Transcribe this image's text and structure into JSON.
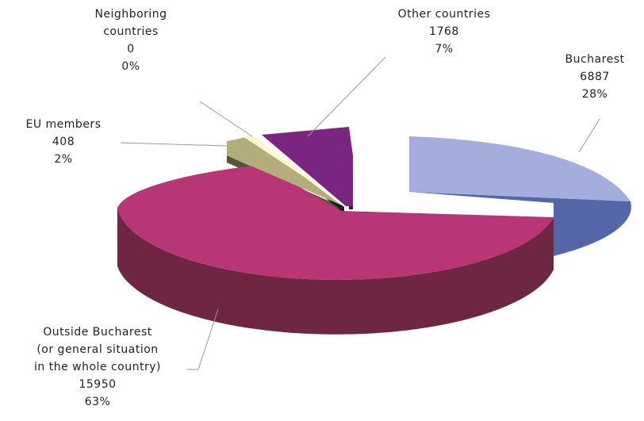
{
  "chart_data": {
    "type": "pie",
    "style": "3d-exploded",
    "title": "",
    "legend": "none",
    "slices": [
      {
        "name": "Bucharest",
        "value": 6887,
        "percent": "28%",
        "value_label": "6887",
        "colors": {
          "top": "#a3aedc",
          "side": "#5566a8"
        }
      },
      {
        "name": "Outside Bucharest (or general situation in the whole country)",
        "value": 15950,
        "percent": "63%",
        "value_label": "15950",
        "colors": {
          "top": "#b83576",
          "side": "#6e2643"
        }
      },
      {
        "name": "EU members",
        "value": 408,
        "percent": "2%",
        "value_label": "408",
        "colors": {
          "top": "#b2ad7b",
          "side": "#57543a"
        }
      },
      {
        "name": "Neighboring countries",
        "value": 0,
        "percent": "0%",
        "value_label": "0",
        "colors": {
          "top": "#fdf6cf",
          "side": "#8a8466"
        }
      },
      {
        "name": "Other countries",
        "value": 1768,
        "percent": "7%",
        "value_label": "1768",
        "colors": {
          "top": "#7a2580",
          "side": "#3f1444"
        }
      }
    ],
    "labels": {
      "bucharest": [
        "Bucharest",
        "6887",
        "28%"
      ],
      "outside": [
        "Outside Bucharest",
        "(or general situation",
        "in the whole country)",
        "15950",
        "63%"
      ],
      "eu": [
        "EU members",
        "408",
        "2%"
      ],
      "neighboring": [
        "Neighboring",
        "countries",
        "0",
        "0%"
      ],
      "other": [
        "Other countries",
        "1768",
        "7%"
      ]
    }
  }
}
